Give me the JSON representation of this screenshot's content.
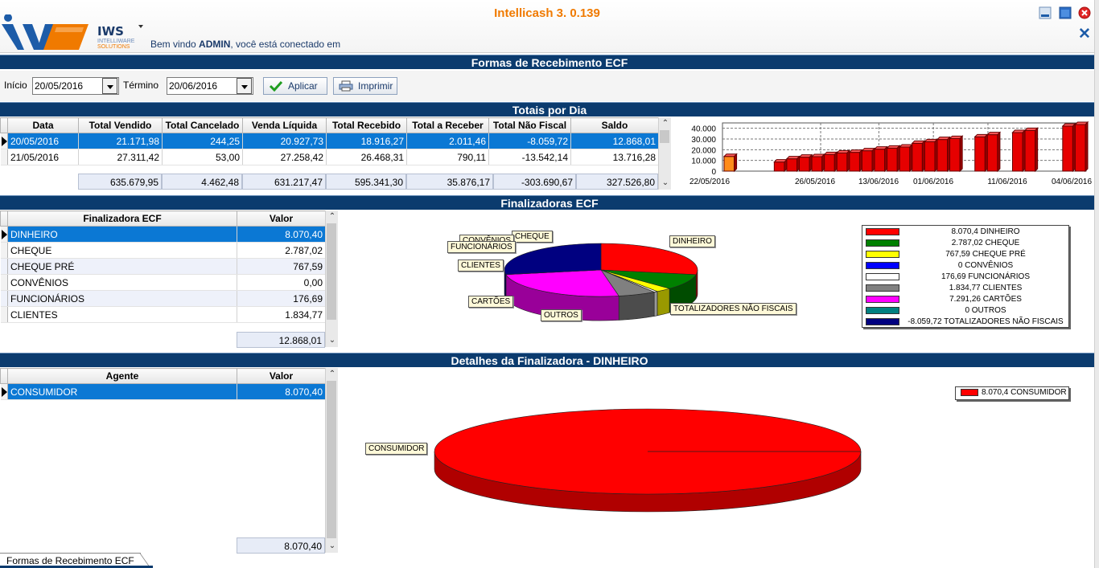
{
  "app": {
    "title": "Intellicash 3. 0.139",
    "logo_name": "IWS",
    "logo_sub1": "INTELLIWARE",
    "logo_sub2": "SOLUTIONS",
    "welcome_prefix": "Bem vindo ",
    "welcome_user": "ADMIN",
    "welcome_suffix": ", você está conectado em"
  },
  "page": {
    "title": "Formas de Recebimento ECF"
  },
  "filter": {
    "start_label": "Início",
    "start_value": "20/05/2016",
    "end_label": "Término",
    "end_value": "20/06/2016",
    "apply_label": "Aplicar",
    "print_label": "Imprimir"
  },
  "daily": {
    "title": "Totais por Dia",
    "columns": [
      "Data",
      "Total Vendido",
      "Total Cancelado",
      "Venda Líquida",
      "Total Recebido",
      "Total a Receber",
      "Total Não Fiscal",
      "Saldo"
    ],
    "rows": [
      [
        "20/05/2016",
        "21.171,98",
        "244,25",
        "20.927,73",
        "18.916,27",
        "2.011,46",
        "-8.059,72",
        "12.868,01"
      ],
      [
        "21/05/2016",
        "27.311,42",
        "53,00",
        "27.258,42",
        "26.468,31",
        "790,11",
        "-13.542,14",
        "13.716,28"
      ]
    ],
    "totals": [
      "635.679,95",
      "4.462,48",
      "631.217,47",
      "595.341,30",
      "35.876,17",
      "-303.690,67",
      "327.526,80"
    ]
  },
  "finalizadoras": {
    "title": "Finalizadoras ECF",
    "columns": [
      "Finalizadora ECF",
      "Valor"
    ],
    "rows": [
      [
        "DINHEIRO",
        "8.070,40"
      ],
      [
        "CHEQUE",
        "2.787,02"
      ],
      [
        "CHEQUE PRÉ",
        "767,59"
      ],
      [
        "CONVÊNIOS",
        "0,00"
      ],
      [
        "FUNCIONÁRIOS",
        "176,69"
      ],
      [
        "CLIENTES",
        "1.834,77"
      ]
    ],
    "total": "12.868,01"
  },
  "detalhes": {
    "title": "Detalhes da Finalizadora - DINHEIRO",
    "columns": [
      "Agente",
      "Valor"
    ],
    "rows": [
      [
        "CONSUMIDOR",
        "8.070,40"
      ]
    ],
    "total": "8.070,40"
  },
  "status": {
    "tab_label": "Formas de Recebimento ECF"
  },
  "colors": {
    "header_bar": "#0b3b6e",
    "title_orange": "#f07a00",
    "selection": "#0b78d4",
    "bar_red": "#e60000"
  },
  "icons": {
    "apply": "checkmark-icon",
    "print": "printer-icon",
    "minimize": "minimize-icon",
    "maximize": "maximize-icon",
    "close": "close-icon"
  },
  "chart_data": [
    {
      "type": "bar",
      "y_ticks": [
        "40.000",
        "30.000",
        "20.000",
        "10.000",
        "0"
      ],
      "x_ticks": [
        "22/05/2016",
        "26/05/2016",
        "13/06/2016",
        "01/06/2016",
        "11/06/2016",
        "04/06/2016"
      ],
      "ylim": [
        0,
        45000
      ],
      "values": [
        13716,
        0,
        0,
        0,
        8500,
        11500,
        13000,
        13500,
        15500,
        17000,
        17500,
        19000,
        20500,
        21500,
        22500,
        26000,
        27500,
        29500,
        30500,
        0,
        32000,
        34000,
        0,
        36000,
        38000,
        0,
        0,
        42000,
        43500
      ],
      "highlight_color": "#ff8c1a",
      "bar_color": "#e60000",
      "grid": true
    },
    {
      "type": "pie",
      "labels": [
        "DINHEIRO",
        "CHEQUE",
        "CHEQUE PRÉ",
        "CONVÊNIOS",
        "FUNCIONÁRIOS",
        "CLIENTES",
        "CARTÕES",
        "OUTROS",
        "TOTALIZADORES NÃO FISCAIS"
      ],
      "values": [
        8070.4,
        2787.02,
        767.59,
        0,
        176.69,
        1834.77,
        7291.26,
        0,
        -8059.72
      ],
      "legend": [
        {
          "text": "8.070,4 DINHEIRO",
          "color": "#ff0000"
        },
        {
          "text": "2.787,02 CHEQUE",
          "color": "#008000"
        },
        {
          "text": "767,59 CHEQUE PRÉ",
          "color": "#ffff00"
        },
        {
          "text": "0 CONVÊNIOS",
          "color": "#0000ff"
        },
        {
          "text": "176,69 FUNCIONÁRIOS",
          "color": "#ffffff"
        },
        {
          "text": "1.834,77 CLIENTES",
          "color": "#808080"
        },
        {
          "text": "7.291,26 CARTÕES",
          "color": "#ff00ff"
        },
        {
          "text": "0 OUTROS",
          "color": "#008080"
        },
        {
          "text": "-8.059,72 TOTALIZADORES NÃO FISCAIS",
          "color": "#000080"
        }
      ],
      "legend_position": "right"
    },
    {
      "type": "pie",
      "labels": [
        "CONSUMIDOR"
      ],
      "values": [
        8070.4
      ],
      "legend": [
        {
          "text": "8.070,4 CONSUMIDOR",
          "color": "#ff0000"
        }
      ],
      "legend_position": "top-right"
    }
  ]
}
